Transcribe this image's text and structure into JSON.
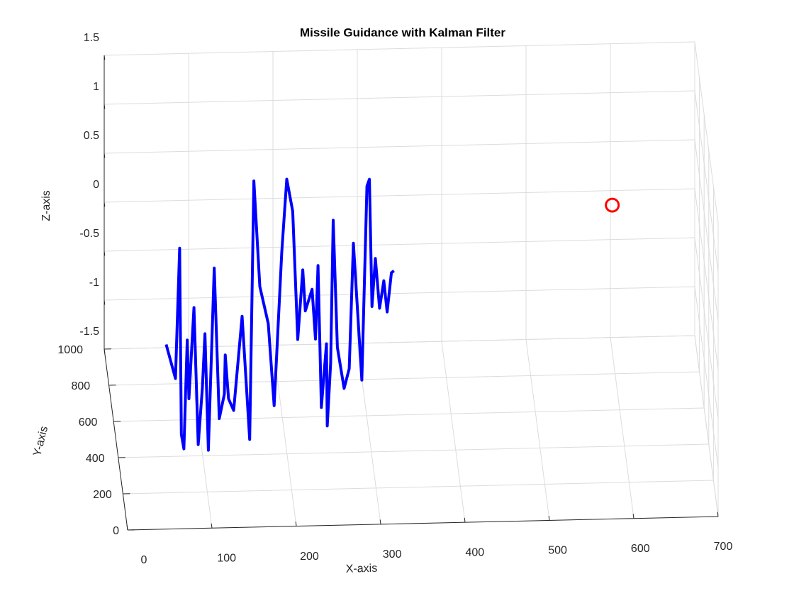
{
  "chart_data": {
    "type": "line3d",
    "title": "Missile Guidance with Kalman Filter",
    "xlabel": "X-axis",
    "ylabel": "Y-axis",
    "zlabel": "Z-axis",
    "xlim": [
      0,
      700
    ],
    "xticks": [
      0,
      100,
      200,
      300,
      400,
      500,
      600,
      700
    ],
    "ylim": [
      0,
      1000
    ],
    "yticks": [
      0,
      200,
      400,
      600,
      800,
      1000
    ],
    "zlim": [
      -1.5,
      1.5
    ],
    "zticks": [
      -1.5,
      -1,
      -0.5,
      0,
      0.5,
      1,
      1.5
    ],
    "grid": true,
    "series": [
      {
        "mode": "line",
        "color": "#0000ff",
        "x": [
          54,
          65,
          70,
          72,
          75,
          79,
          81,
          87,
          92,
          97,
          100,
          104,
          111,
          117,
          123,
          124,
          128,
          134,
          144,
          153,
          158,
          165,
          175,
          182,
          185,
          191,
          197,
          204,
          210,
          216,
          219,
          227,
          231,
          234,
          238,
          244,
          245,
          249,
          252,
          257,
          265,
          271,
          276,
          286,
          292,
          295,
          298,
          302,
          307,
          312,
          316,
          321,
          324
        ],
        "y": [
          300,
          300,
          300,
          300,
          300,
          300,
          300,
          300,
          300,
          300,
          300,
          300,
          300,
          300,
          300,
          300,
          300,
          300,
          300,
          300,
          300,
          300,
          300,
          300,
          300,
          300,
          300,
          300,
          300,
          300,
          300,
          300,
          300,
          300,
          300,
          300,
          300,
          300,
          300,
          300,
          300,
          300,
          300,
          300,
          300,
          300,
          300,
          300,
          300,
          300,
          300,
          300,
          300
        ],
        "z": [
          -0.17,
          -0.52,
          0.81,
          -1.09,
          -1.24,
          -0.13,
          -0.73,
          0.2,
          -1.2,
          -0.62,
          -0.07,
          -1.26,
          0.6,
          -0.94,
          -0.69,
          -0.29,
          -0.74,
          -0.86,
          0.1,
          -1.16,
          1.48,
          0.4,
          0.02,
          -0.82,
          -0.3,
          0.74,
          1.49,
          1.16,
          -0.15,
          0.56,
          0.14,
          0.36,
          -0.15,
          0.6,
          -0.85,
          -0.2,
          -1.04,
          -0.4,
          1.06,
          -0.24,
          -0.66,
          -0.46,
          0.82,
          -0.58,
          1.4,
          1.47,
          0.17,
          0.66,
          0.15,
          0.43,
          0.11,
          0.51,
          0.53
        ]
      },
      {
        "mode": "marker",
        "marker": "o",
        "color": "#ff0000",
        "x": [
          600
        ],
        "y": [
          920
        ],
        "z": [
          0
        ]
      }
    ]
  }
}
